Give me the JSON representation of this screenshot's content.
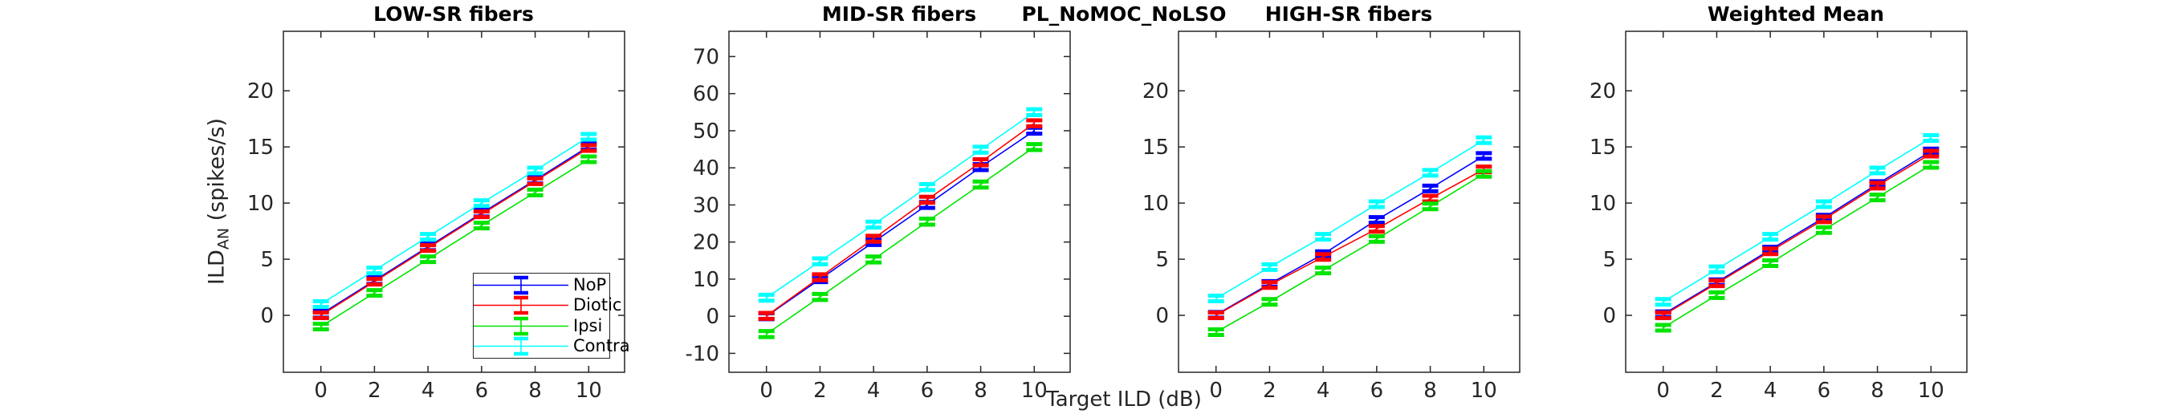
{
  "figure": {
    "suptitle": "PL_NoMOC_NoLSO",
    "xlabel": "Target ILD (dB)",
    "ylabel_main": "ILD",
    "ylabel_sub": "AN",
    "ylabel_unit": " (spikes/s)",
    "background_color": "#ffffff",
    "axis_color": "#262626"
  },
  "legend": {
    "position": "inside-first-subplot-lower-right",
    "entries": [
      "NoP",
      "Diotic",
      "Ipsi",
      "Contra"
    ]
  },
  "chart_data": {
    "type": "line",
    "x": [
      0,
      2,
      4,
      6,
      8,
      10
    ],
    "xticks": [
      0,
      2,
      4,
      6,
      8,
      10
    ],
    "xlim": [
      -1.4,
      11.34
    ],
    "xlabel": "Target ILD (dB)",
    "ylabel": "ILD_AN (spikes/s)",
    "grid": false,
    "error_bars": true,
    "series_names": [
      "NoP",
      "Diotic",
      "Ipsi",
      "Contra"
    ],
    "series_colors": {
      "NoP": "#0000ff",
      "Diotic": "#ff0000",
      "Ipsi": "#00e400",
      "Contra": "#00ffff"
    },
    "subplots": [
      {
        "title": "LOW-SR fibers",
        "ylim": [
          -5.07,
          25.3
        ],
        "yticks": [
          0,
          5,
          10,
          15,
          20
        ],
        "series": [
          {
            "name": "NoP",
            "color": "#0000ff",
            "values": [
              0.1,
              3.1,
              6.1,
              9.1,
              12.05,
              15.05
            ],
            "err": 0.3
          },
          {
            "name": "Diotic",
            "color": "#ff0000",
            "values": [
              0.0,
              3.0,
              6.0,
              9.0,
              11.95,
              14.9
            ],
            "err": 0.25
          },
          {
            "name": "Ipsi",
            "color": "#00e400",
            "values": [
              -1.0,
              2.0,
              5.0,
              8.0,
              10.95,
              13.9
            ],
            "err": 0.25
          },
          {
            "name": "Contra",
            "color": "#00ffff",
            "values": [
              1.0,
              4.0,
              7.0,
              10.0,
              12.9,
              15.9
            ],
            "err": 0.25
          }
        ]
      },
      {
        "title": "MID-SR fibers",
        "ylim": [
          -15.1,
          76.8
        ],
        "yticks": [
          -10,
          0,
          10,
          20,
          30,
          40,
          50,
          60,
          70
        ],
        "series": [
          {
            "name": "NoP",
            "color": "#0000ff",
            "values": [
              0.0,
              10.0,
              20.0,
              30.0,
              40.2,
              50.0
            ],
            "err": 0.8
          },
          {
            "name": "Diotic",
            "color": "#ff0000",
            "values": [
              0.1,
              10.5,
              20.9,
              31.4,
              41.5,
              52.0
            ],
            "err": 0.8
          },
          {
            "name": "Ipsi",
            "color": "#00e400",
            "values": [
              -4.8,
              5.2,
              15.3,
              25.5,
              35.5,
              45.6
            ],
            "err": 0.8
          },
          {
            "name": "Contra",
            "color": "#00ffff",
            "values": [
              5.0,
              14.8,
              24.7,
              34.8,
              44.9,
              55.0
            ],
            "err": 0.8
          }
        ]
      },
      {
        "title": "HIGH-SR fibers",
        "ylim": [
          -5.07,
          25.3
        ],
        "yticks": [
          0,
          5,
          10,
          15,
          20
        ],
        "series": [
          {
            "name": "NoP",
            "color": "#0000ff",
            "values": [
              0.05,
              2.8,
              5.45,
              8.5,
              11.3,
              14.2
            ],
            "err": 0.25
          },
          {
            "name": "Diotic",
            "color": "#ff0000",
            "values": [
              0.0,
              2.7,
              5.2,
              7.7,
              10.4,
              13.0
            ],
            "err": 0.25
          },
          {
            "name": "Ipsi",
            "color": "#00e400",
            "values": [
              -1.5,
              1.2,
              4.0,
              6.8,
              9.7,
              12.6
            ],
            "err": 0.25
          },
          {
            "name": "Contra",
            "color": "#00ffff",
            "values": [
              1.5,
              4.3,
              7.0,
              9.9,
              12.7,
              15.6
            ],
            "err": 0.25
          }
        ]
      },
      {
        "title": "Weighted Mean",
        "ylim": [
          -5.07,
          25.3
        ],
        "yticks": [
          0,
          5,
          10,
          15,
          20
        ],
        "series": [
          {
            "name": "NoP",
            "color": "#0000ff",
            "values": [
              0.1,
              2.95,
              5.85,
              8.7,
              11.7,
              14.6
            ],
            "err": 0.25
          },
          {
            "name": "Diotic",
            "color": "#ff0000",
            "values": [
              0.0,
              2.85,
              5.7,
              8.55,
              11.55,
              14.4
            ],
            "err": 0.25
          },
          {
            "name": "Ipsi",
            "color": "#00e400",
            "values": [
              -1.1,
              1.8,
              4.65,
              7.6,
              10.5,
              13.4
            ],
            "err": 0.25
          },
          {
            "name": "Contra",
            "color": "#00ffff",
            "values": [
              1.2,
              4.1,
              7.0,
              9.9,
              12.9,
              15.8
            ],
            "err": 0.25
          }
        ]
      }
    ]
  }
}
